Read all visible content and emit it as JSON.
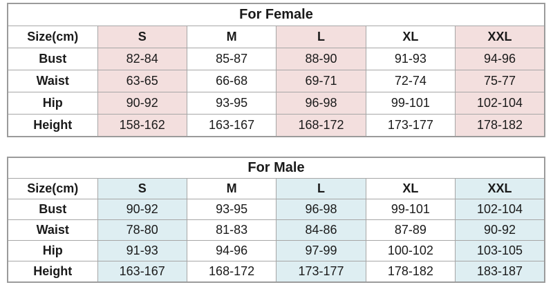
{
  "page": {
    "background": "#ffffff",
    "text_color": "#1a1a1a",
    "border_color": "#a6a6a6"
  },
  "tables": [
    {
      "id": "female",
      "title": "For Female",
      "accent_color": "#f3dfde",
      "shaded_columns": [
        1,
        3,
        5
      ],
      "columns": [
        "Size(cm)",
        "S",
        "M",
        "L",
        "XL",
        "XXL"
      ],
      "rows": [
        {
          "label": "Bust",
          "values": [
            "82-84",
            "85-87",
            "88-90",
            "91-93",
            "94-96"
          ]
        },
        {
          "label": "Waist",
          "values": [
            "63-65",
            "66-68",
            "69-71",
            "72-74",
            "75-77"
          ]
        },
        {
          "label": "Hip",
          "values": [
            "90-92",
            "93-95",
            "96-98",
            "99-101",
            "102-104"
          ]
        },
        {
          "label": "Height",
          "values": [
            "158-162",
            "163-167",
            "168-172",
            "173-177",
            "178-182"
          ]
        }
      ]
    },
    {
      "id": "male",
      "title": "For Male",
      "accent_color": "#deeef2",
      "shaded_columns": [
        1,
        3,
        5
      ],
      "columns": [
        "Size(cm)",
        "S",
        "M",
        "L",
        "XL",
        "XXL"
      ],
      "rows": [
        {
          "label": "Bust",
          "values": [
            "90-92",
            "93-95",
            "96-98",
            "99-101",
            "102-104"
          ]
        },
        {
          "label": "Waist",
          "values": [
            "78-80",
            "81-83",
            "84-86",
            "87-89",
            "90-92"
          ]
        },
        {
          "label": "Hip",
          "values": [
            "91-93",
            "94-96",
            "97-99",
            "100-102",
            "103-105"
          ]
        },
        {
          "label": "Height",
          "values": [
            "163-167",
            "168-172",
            "173-177",
            "178-182",
            "183-187"
          ]
        }
      ]
    }
  ]
}
